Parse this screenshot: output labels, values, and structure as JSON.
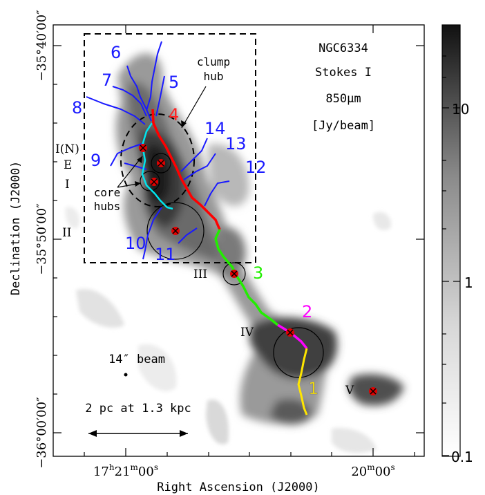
{
  "title_box": {
    "line1": "NGC6334",
    "line2": "Stokes I",
    "line3": "850μm",
    "line4": "[Jy/beam]"
  },
  "axes": {
    "x_label": "Right Ascension (J2000)",
    "y_label": "Declination (J2000)",
    "x_ticks": [
      "17ʰ21ᵐ⁰⁰ˢ",
      "20ᵐ⁰⁰ˢ"
    ],
    "y_ticks": [
      "−35°40′00″",
      "−35°50′00″",
      "−36°00′00″"
    ]
  },
  "colorbar": {
    "ticks": [
      "10",
      "1",
      "0.1"
    ],
    "gradient": [
      "#111111",
      "#ffffff"
    ]
  },
  "annotations": {
    "clump_hub": "clump\nhub",
    "core_hubs": "core\nhubs",
    "beam": "14″ beam",
    "scale": "2 pc at 1.3 kpc"
  },
  "regions": [
    "I(N)",
    "E",
    "I",
    "II",
    "III",
    "IV",
    "V"
  ],
  "filaments": [
    {
      "id": "1",
      "color": "#ffe600"
    },
    {
      "id": "2",
      "color": "#ff00ff"
    },
    {
      "id": "3",
      "color": "#22ee00"
    },
    {
      "id": "4",
      "color": "#ff0000"
    },
    {
      "id": "5",
      "color": "#1a1aff"
    },
    {
      "id": "6",
      "color": "#1a1aff"
    },
    {
      "id": "7",
      "color": "#1a1aff"
    },
    {
      "id": "8",
      "color": "#1a1aff"
    },
    {
      "id": "9",
      "color": "#1a1aff"
    },
    {
      "id": "10",
      "color": "#1a1aff"
    },
    {
      "id": "11",
      "color": "#1a1aff"
    },
    {
      "id": "12",
      "color": "#1a1aff"
    },
    {
      "id": "13",
      "color": "#1a1aff"
    },
    {
      "id": "14",
      "color": "#1a1aff"
    }
  ],
  "hub_color": "#e00000",
  "cyan_color": "#00e5ee"
}
